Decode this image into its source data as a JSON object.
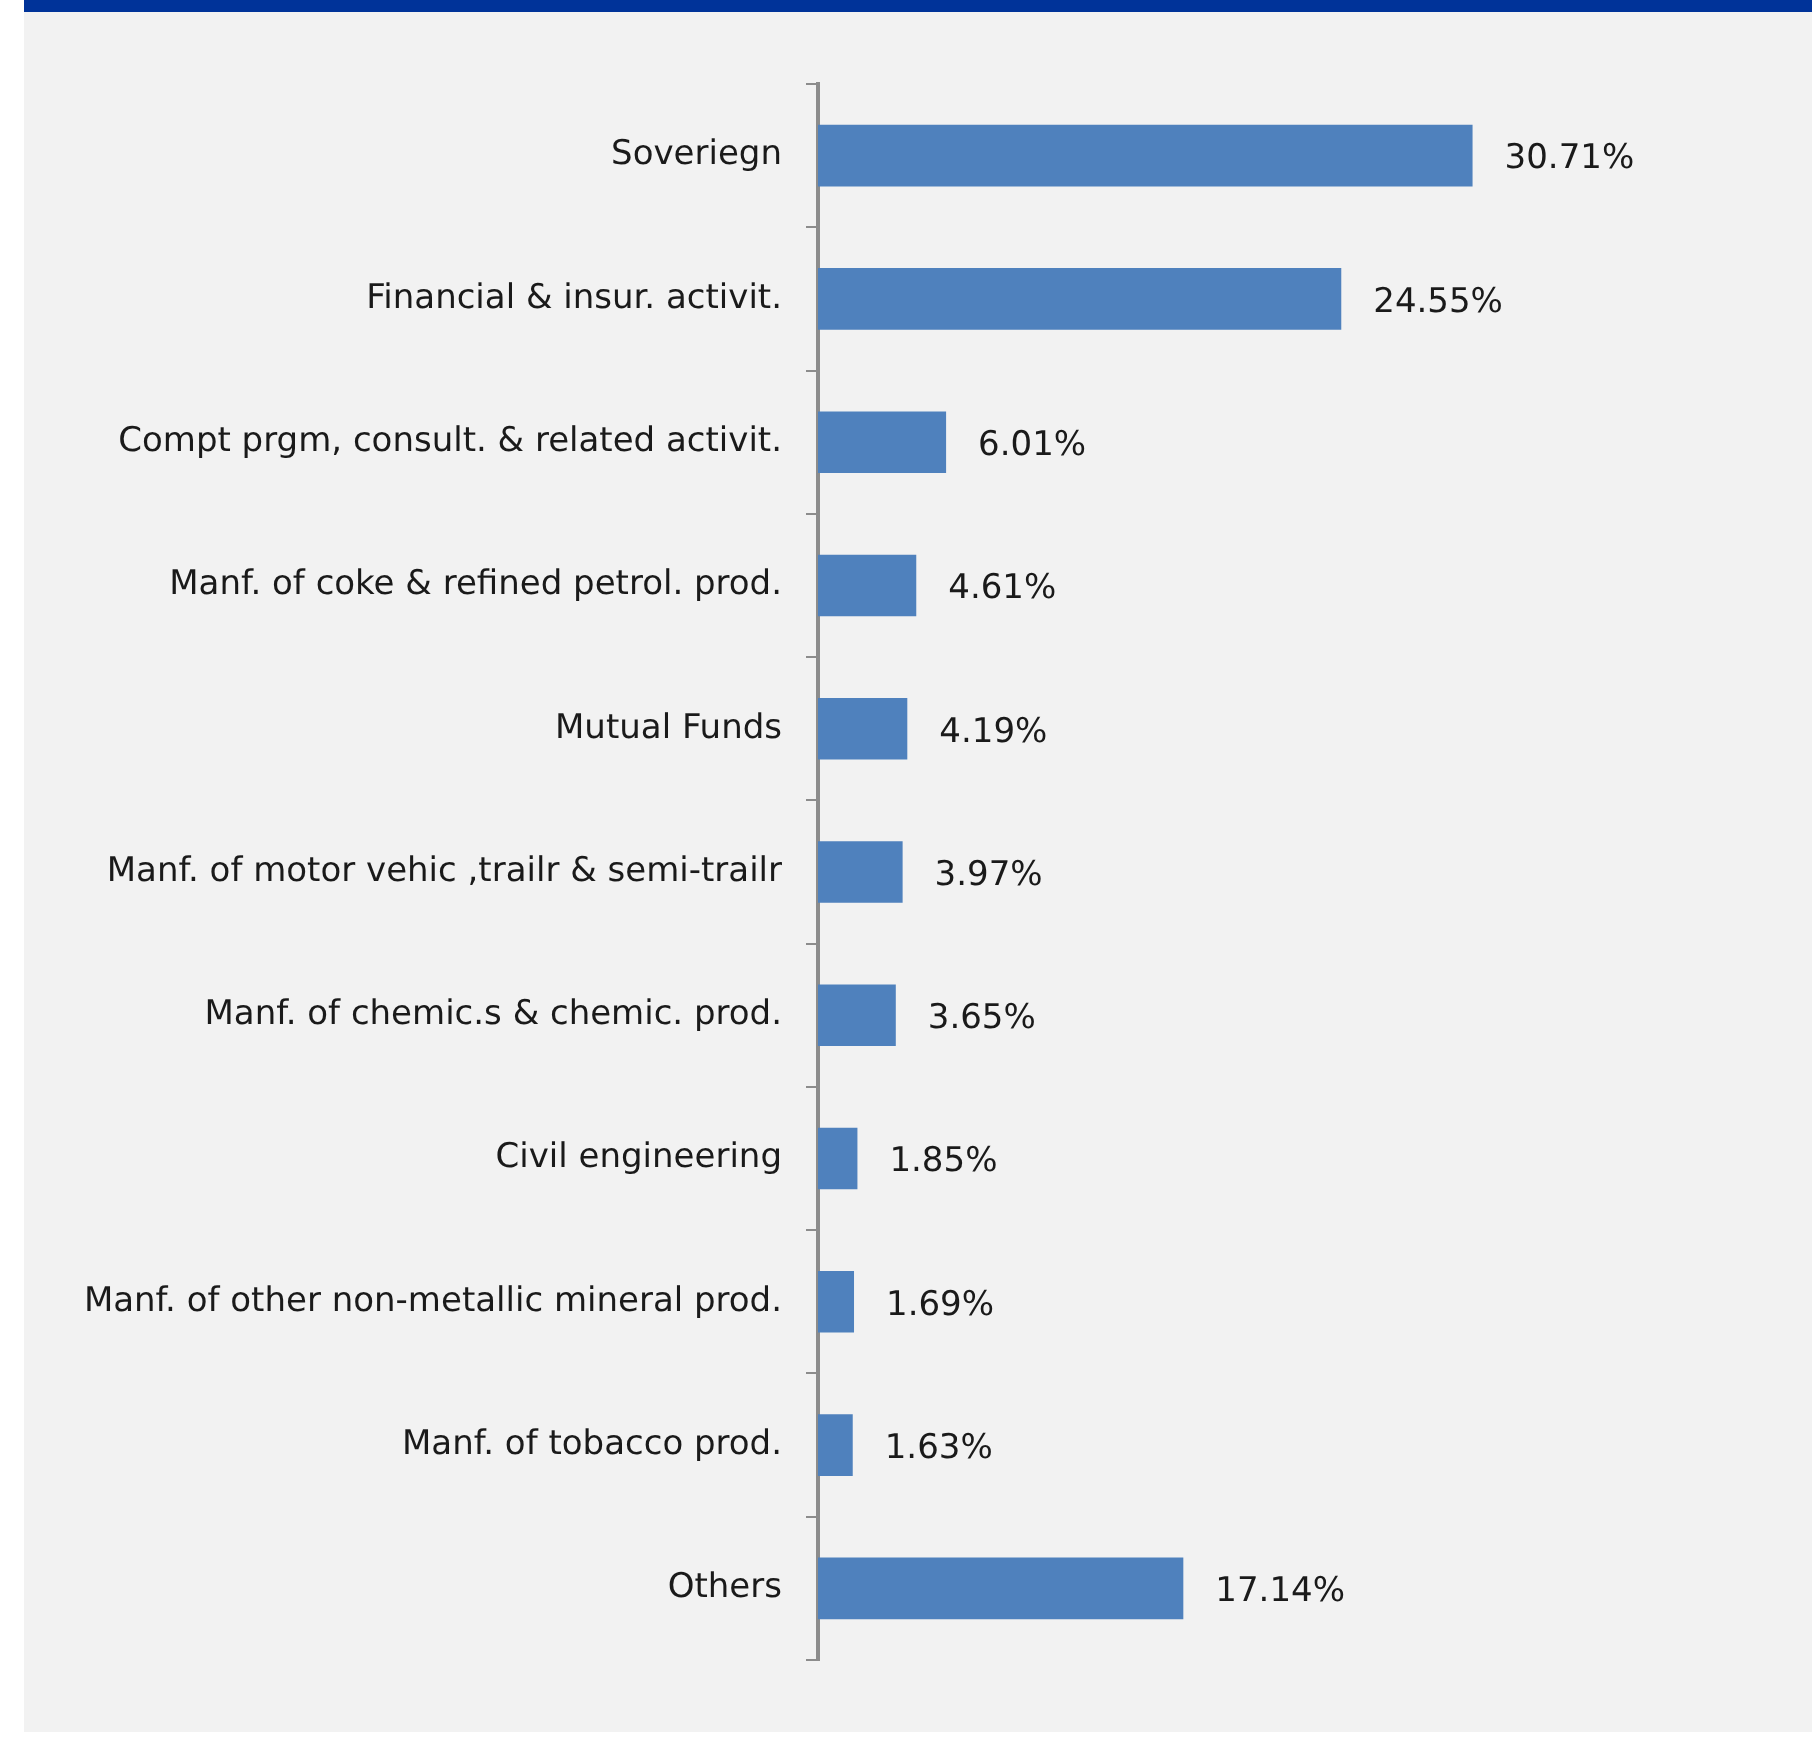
{
  "chart_data": {
    "type": "bar",
    "orientation": "horizontal",
    "categories": [
      "Soveriegn",
      "Financial & insur. activit.",
      "Compt prgm, consult. & related activit.",
      "Manf. of coke & refined petrol. prod.",
      "Mutual Funds",
      "Manf. of motor vehic ,trailr & semi-trailr",
      "Manf. of chemic.s & chemic. prod.",
      "Civil engineering",
      "Manf. of other non-metallic mineral prod.",
      "Manf. of tobacco prod.",
      "Others"
    ],
    "values": [
      30.71,
      24.55,
      6.01,
      4.61,
      4.19,
      3.97,
      3.65,
      1.85,
      1.69,
      1.63,
      17.14
    ],
    "value_labels": [
      "30.71%",
      "24.55%",
      "6.01%",
      "4.61%",
      "4.19%",
      "3.97%",
      "3.65%",
      "1.85%",
      "1.69%",
      "1.63%",
      "17.14%"
    ],
    "color": "#4f81bd",
    "grid": false,
    "legend": false
  }
}
